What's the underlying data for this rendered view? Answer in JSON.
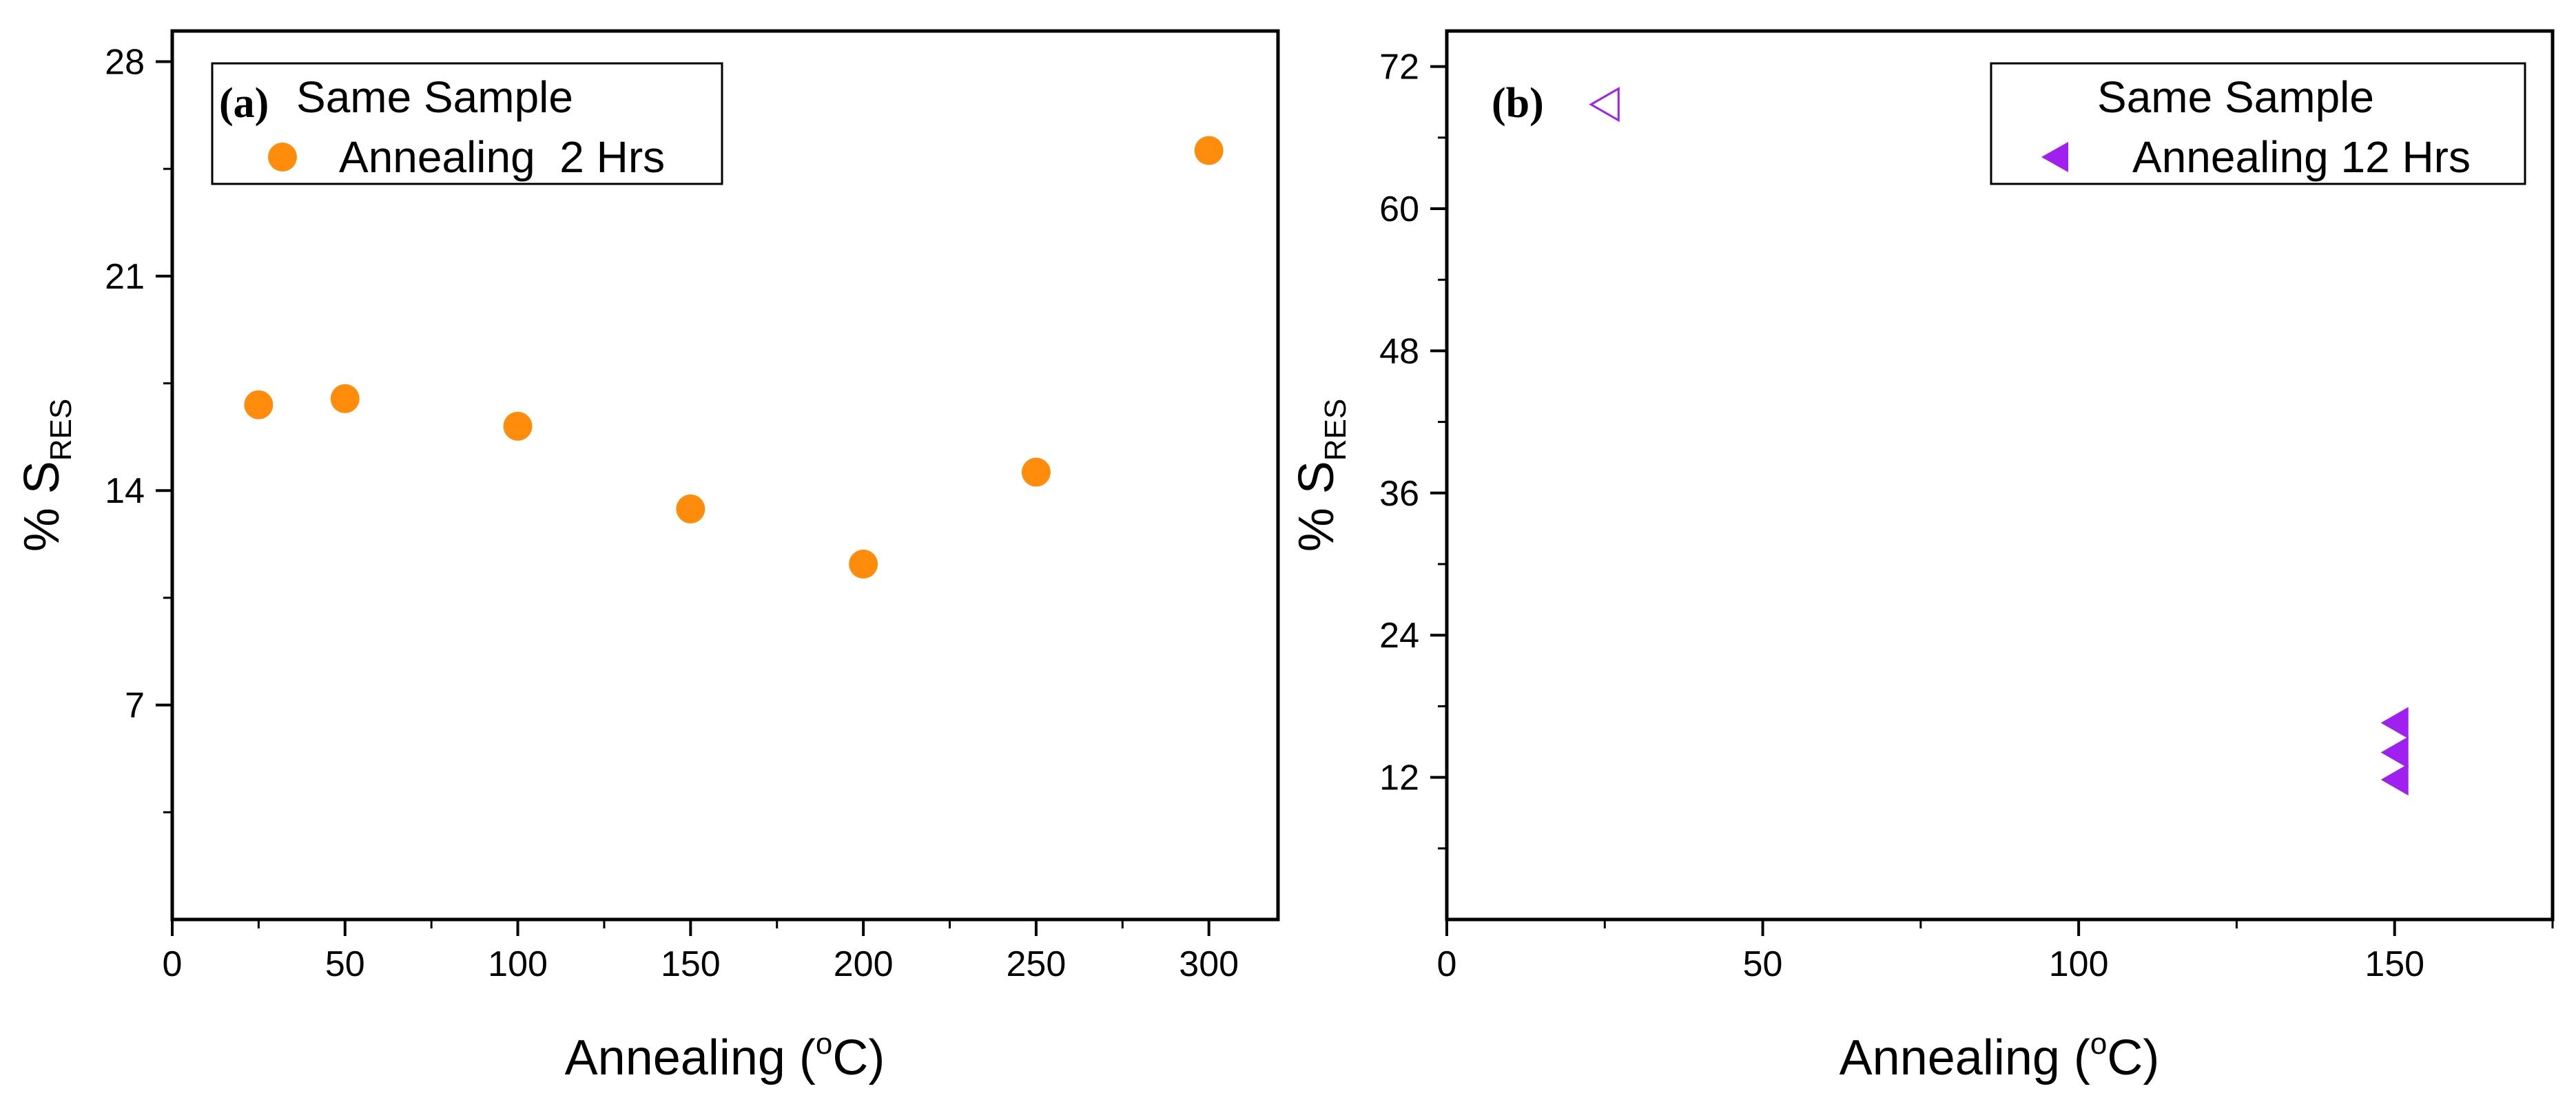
{
  "chart_data": [
    {
      "type": "scatter",
      "panel_label": "(b)",
      "_comment": "panel a",
      "panel": "(a)",
      "xlabel_main": "Annealing (",
      "xlabel_sup": "o",
      "xlabel_end": "C)",
      "ylabel_main": "% S",
      "ylabel_sub": "RES",
      "xlim": [
        0,
        320
      ],
      "ylim": [
        0,
        29
      ],
      "x_ticks": [
        0,
        50,
        100,
        150,
        200,
        250,
        300
      ],
      "y_ticks": [
        7,
        14,
        21,
        28
      ],
      "legend": {
        "title": "Same Sample",
        "label": "Annealing  2 Hrs",
        "placement": "top-left"
      },
      "series": [
        {
          "marker": "circle",
          "color": "#FF8C0A",
          "points": [
            {
              "x": 25,
              "y": 16.8
            },
            {
              "x": 50,
              "y": 17.0
            },
            {
              "x": 100,
              "y": 16.1
            },
            {
              "x": 150,
              "y": 13.4
            },
            {
              "x": 200,
              "y": 11.6
            },
            {
              "x": 250,
              "y": 14.6
            },
            {
              "x": 300,
              "y": 25.1
            }
          ]
        }
      ]
    },
    {
      "type": "scatter",
      "panel": "(b)",
      "xlabel_main": "Annealing (",
      "xlabel_sup": "o",
      "xlabel_end": "C)",
      "ylabel_main": "% S",
      "ylabel_sub": "RES",
      "xlim": [
        0,
        175
      ],
      "ylim": [
        0,
        75
      ],
      "x_ticks": [
        0,
        50,
        100,
        150
      ],
      "y_ticks": [
        12,
        24,
        36,
        48,
        60,
        72
      ],
      "legend": {
        "title": "Same Sample",
        "label": "Annealing 12 Hrs",
        "placement": "top-right"
      },
      "series": [
        {
          "marker": "triangle-left-open",
          "color": "#A020F0",
          "points": [
            {
              "x": 25,
              "y": 68.8
            }
          ]
        },
        {
          "marker": "triangle-left",
          "color": "#A020F0",
          "points": [
            {
              "x": 150,
              "y": 16.6
            },
            {
              "x": 150,
              "y": 14.1
            },
            {
              "x": 150,
              "y": 11.8
            }
          ]
        }
      ]
    }
  ]
}
